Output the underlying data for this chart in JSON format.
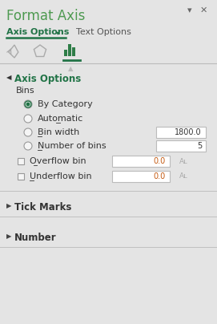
{
  "title": "Format Axis",
  "title_color": "#4E9A51",
  "bg_color": "#E4E4E4",
  "tab_active": "Axis Options",
  "tab_inactive": "Text Options",
  "tab_color": "#217346",
  "section_label": "Axis Options",
  "section_color": "#217346",
  "bins_label": "Bins",
  "radio_items": [
    {
      "label": "By Category",
      "selected": true
    },
    {
      "label": "Automatic",
      "selected": false
    },
    {
      "label": "Bin width",
      "selected": false,
      "value": "1800.0"
    },
    {
      "label": "Number of bins",
      "selected": false,
      "value": "5"
    }
  ],
  "checkbox_items": [
    {
      "label": "Overflow bin",
      "checked": false,
      "value": "0.0"
    },
    {
      "label": "Underflow bin",
      "checked": false,
      "value": "0.0"
    }
  ],
  "collapsible": [
    "Tick Marks",
    "Number"
  ],
  "input_value_color": "#C55A11",
  "text_color": "#333333",
  "icon_color": "#888888",
  "divider_color": "#C0C0C0"
}
